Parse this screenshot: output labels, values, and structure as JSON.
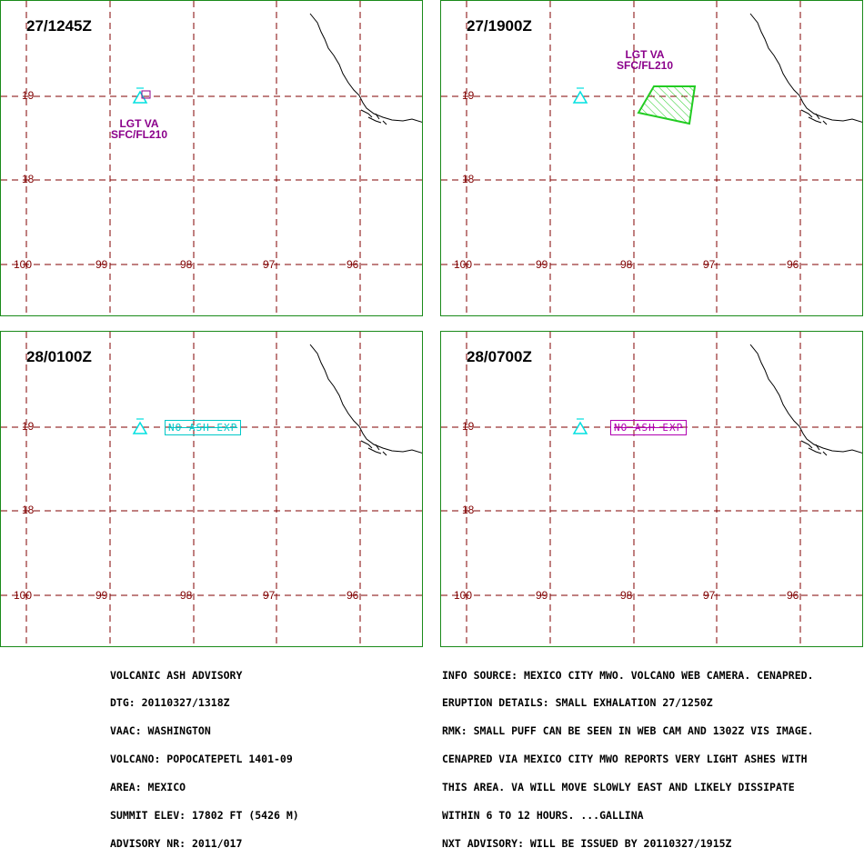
{
  "colors": {
    "border": "#1a8a1a",
    "grid": "#800000",
    "volcano": "#00e0e0",
    "ash_label": "#8b008b",
    "ash_area": "#22cc22",
    "coast": "#000000"
  },
  "panels": [
    {
      "title": "27/1245Z",
      "label_top": "LGT VA",
      "label_bottom": "SFC/FL210",
      "ash_polygon": "small-box",
      "note": ""
    },
    {
      "title": "27/1900Z",
      "label_top": "LGT VA",
      "label_bottom": "SFC/FL210",
      "ash_polygon": "hatched-quad",
      "note": ""
    },
    {
      "title": "28/0100Z",
      "label_top": "",
      "label_bottom": "",
      "ash_polygon": "",
      "note": "NO ASH EXP",
      "note_color": "#00c8c8"
    },
    {
      "title": "28/0700Z",
      "label_top": "",
      "label_bottom": "",
      "ash_polygon": "",
      "note": "NO ASH EXP",
      "note_color": "#b000b0"
    }
  ],
  "axis": {
    "lat_labels": [
      "19",
      "18"
    ],
    "lon_labels": [
      "-100",
      "-99",
      "-98",
      "-97",
      "-96"
    ],
    "lon_display": [
      "100",
      "99",
      "98",
      "97",
      "96"
    ]
  },
  "advisory_left": [
    "VOLCANIC ASH ADVISORY",
    "DTG: 20110327/1318Z",
    "VAAC: WASHINGTON",
    "VOLCANO: POPOCATEPETL 1401-09",
    "AREA: MEXICO",
    "SUMMIT ELEV: 17802 FT (5426 M)",
    "ADVISORY NR: 2011/017"
  ],
  "advisory_right": [
    "INFO SOURCE: MEXICO CITY MWO. VOLCANO WEB CAMERA. CENAPRED.",
    "ERUPTION DETAILS: SMALL EXHALATION 27/1250Z",
    "RMK: SMALL PUFF CAN BE SEEN IN WEB CAM AND 1302Z VIS IMAGE.",
    "CENAPRED VIA MEXICO CITY MWO REPORTS VERY LIGHT ASHES WITH",
    "THIS AREA. VA WILL MOVE SLOWLY EAST AND LIKELY DISSIPATE",
    "WITHIN 6 TO 12 HOURS. ...GALLINA",
    "NXT ADVISORY: WILL BE ISSUED BY 20110327/1915Z"
  ]
}
